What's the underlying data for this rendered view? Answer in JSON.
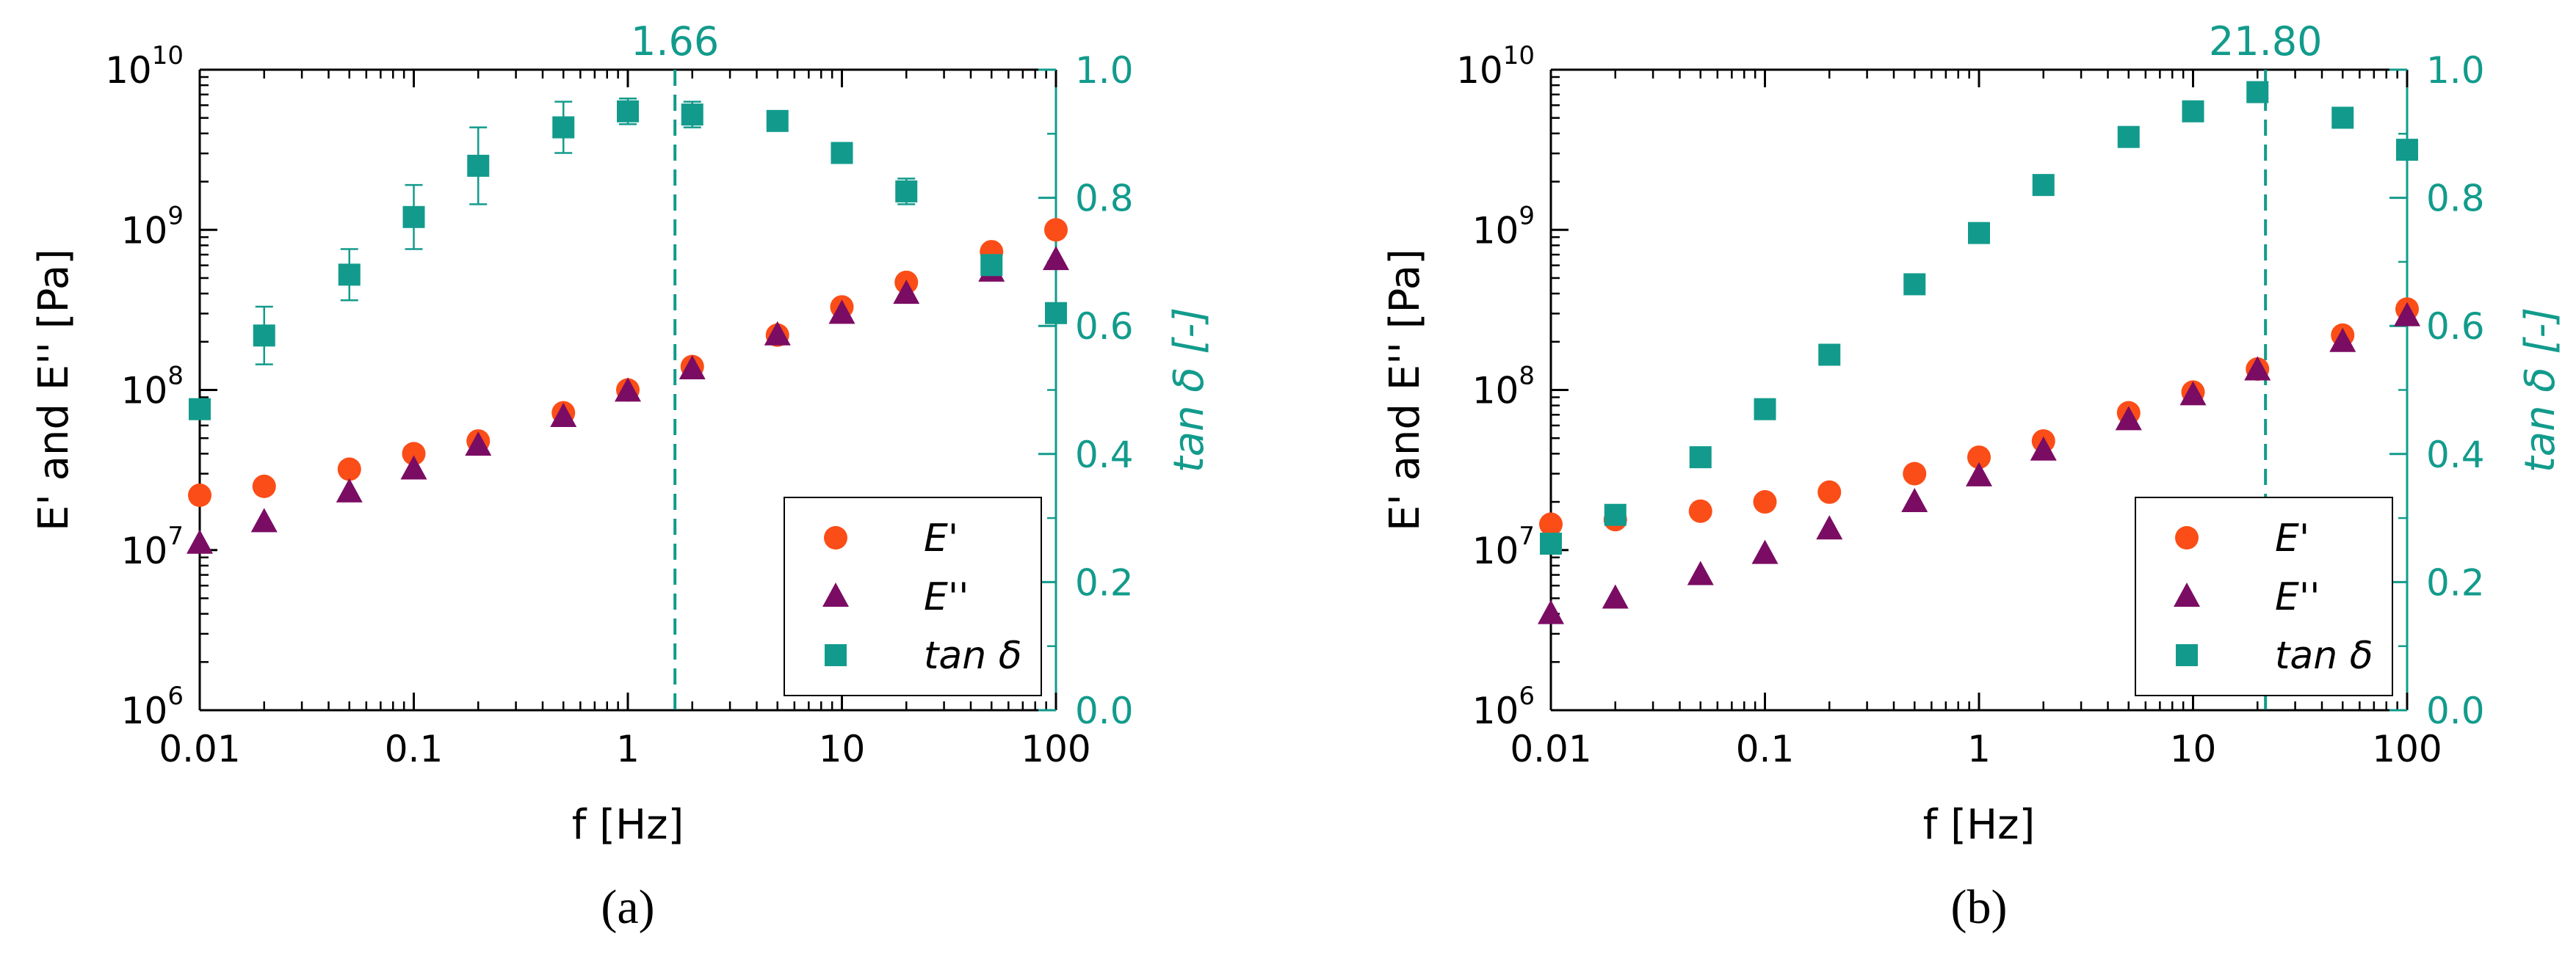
{
  "colors": {
    "Eprime": "#fb4d17",
    "Edouble": "#7b0c63",
    "tan": "#129b8c",
    "axis": "#000000"
  },
  "chart_data": [
    {
      "type": "scatter",
      "panel_label": "(a)",
      "panel_letter": "a",
      "xlabel": "f [Hz]",
      "ylabel": "E' and E'' [Pa]",
      "y2label": "tan δ [-]",
      "x_scale": "log",
      "y_scale": "log",
      "xlim": [
        0.01,
        100
      ],
      "ylim": [
        1000000.0,
        10000000000.0
      ],
      "y2lim": [
        0.0,
        1.0
      ],
      "x_tick_labels": [
        "0.01",
        "0.1",
        "1",
        "10",
        "100"
      ],
      "y_tick_labels": [
        "6",
        "7",
        "8",
        "9",
        "10"
      ],
      "y2_tick_labels": [
        "0.0",
        "0.2",
        "0.4",
        "0.6",
        "0.8",
        "1.0"
      ],
      "crossover_label": "1.66",
      "crossover_x": 1.66,
      "legend": {
        "position": "bottom-right",
        "entries": [
          "E'",
          "E''",
          "tan δ"
        ]
      },
      "series": [
        {
          "name": "E'",
          "marker": "circle",
          "axis": "left",
          "x": [
            0.01,
            0.02,
            0.05,
            0.1,
            0.2,
            0.5,
            1,
            2,
            5,
            10,
            20,
            50,
            100
          ],
          "y": [
            22000000.0,
            25000000.0,
            32000000.0,
            40000000.0,
            48000000.0,
            72000000.0,
            100000000.0,
            140000000.0,
            220000000.0,
            330000000.0,
            470000000.0,
            730000000.0,
            1000000000.0
          ]
        },
        {
          "name": "E''",
          "marker": "triangle",
          "axis": "left",
          "x": [
            0.01,
            0.02,
            0.05,
            0.1,
            0.2,
            0.5,
            1,
            2,
            5,
            10,
            20,
            50,
            100
          ],
          "y": [
            11000000.0,
            15000000.0,
            23000000.0,
            32000000.0,
            45000000.0,
            68000000.0,
            98000000.0,
            135000000.0,
            220000000.0,
            300000000.0,
            400000000.0,
            550000000.0,
            650000000.0
          ]
        },
        {
          "name": "tan δ",
          "marker": "square",
          "axis": "right",
          "x": [
            0.01,
            0.02,
            0.05,
            0.1,
            0.2,
            0.5,
            1,
            2,
            5,
            10,
            20,
            50,
            100
          ],
          "y": [
            0.47,
            0.585,
            0.68,
            0.77,
            0.85,
            0.91,
            0.935,
            0.93,
            0.92,
            0.87,
            0.81,
            0.695,
            0.62
          ],
          "err": [
            0,
            0.045,
            0.04,
            0.05,
            0.06,
            0.04,
            0.02,
            0.02,
            0,
            0,
            0.02,
            0,
            0
          ]
        }
      ]
    },
    {
      "type": "scatter",
      "panel_label": "(b)",
      "panel_letter": "b",
      "xlabel": "f [Hz]",
      "ylabel": "E' and E'' [Pa]",
      "y2label": "tan δ [-]",
      "x_scale": "log",
      "y_scale": "log",
      "xlim": [
        0.01,
        100
      ],
      "ylim": [
        1000000.0,
        10000000000.0
      ],
      "y2lim": [
        0.0,
        1.0
      ],
      "x_tick_labels": [
        "0.01",
        "0.1",
        "1",
        "10",
        "100"
      ],
      "y_tick_labels": [
        "6",
        "7",
        "8",
        "9",
        "10"
      ],
      "y2_tick_labels": [
        "0.0",
        "0.2",
        "0.4",
        "0.6",
        "0.8",
        "1.0"
      ],
      "crossover_label": "21.80",
      "crossover_x": 21.8,
      "legend": {
        "position": "bottom-right",
        "entries": [
          "E'",
          "E''",
          "tan δ"
        ]
      },
      "series": [
        {
          "name": "E'",
          "marker": "circle",
          "axis": "left",
          "x": [
            0.01,
            0.02,
            0.05,
            0.1,
            0.2,
            0.5,
            1,
            2,
            5,
            10,
            20,
            50,
            100
          ],
          "y": [
            14500000.0,
            15500000.0,
            17500000.0,
            20000000.0,
            23000000.0,
            30000000.0,
            38000000.0,
            48000000.0,
            72000000.0,
            97000000.0,
            135000000.0,
            220000000.0,
            320000000.0
          ]
        },
        {
          "name": "E''",
          "marker": "triangle",
          "axis": "left",
          "x": [
            0.01,
            0.02,
            0.05,
            0.1,
            0.2,
            0.5,
            1,
            2,
            5,
            10,
            20,
            50,
            100
          ],
          "y": [
            4000000.0,
            5000000.0,
            7000000.0,
            9500000.0,
            13500000.0,
            20000000.0,
            29000000.0,
            42000000.0,
            65000000.0,
            93000000.0,
            133000000.0,
            200000000.0,
            290000000.0
          ]
        },
        {
          "name": "tan δ",
          "marker": "square",
          "axis": "right",
          "x": [
            0.01,
            0.02,
            0.05,
            0.1,
            0.2,
            0.5,
            1,
            2,
            5,
            10,
            20,
            50,
            100
          ],
          "y": [
            0.26,
            0.305,
            0.395,
            0.47,
            0.555,
            0.665,
            0.745,
            0.82,
            0.895,
            0.935,
            0.965,
            0.925,
            0.875
          ],
          "err": [
            0,
            0,
            0,
            0,
            0,
            0,
            0,
            0,
            0,
            0,
            0,
            0,
            0
          ]
        }
      ]
    }
  ]
}
